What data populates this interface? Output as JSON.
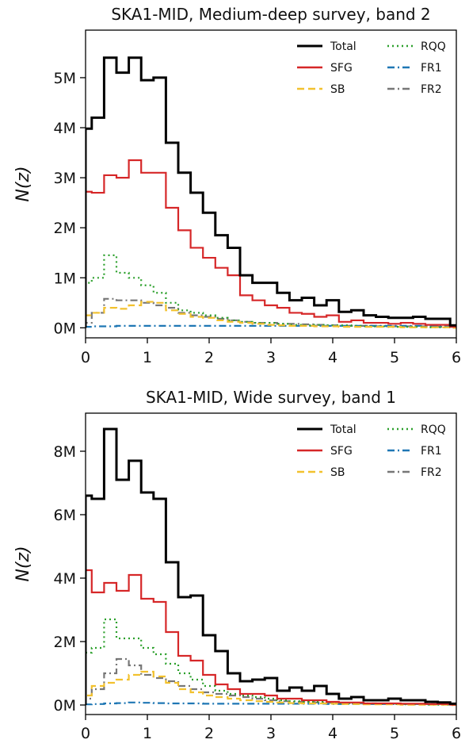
{
  "chart_data": [
    {
      "type": "step",
      "title": "SKA1-MID, Medium-deep survey, band 2",
      "ylabel": "N(z)",
      "xlabel": "",
      "xlim": [
        0,
        6
      ],
      "ylim": [
        -0.2,
        5.95
      ],
      "y_ticks": [
        0,
        1,
        2,
        3,
        4,
        5
      ],
      "y_tick_labels": [
        "0M",
        "1M",
        "2M",
        "3M",
        "4M",
        "5M"
      ],
      "x_ticks": [
        0,
        1,
        2,
        3,
        4,
        5,
        6
      ],
      "x_tick_labels": [
        "0",
        "1",
        "2",
        "3",
        "4",
        "5",
        "6"
      ],
      "y_unit": "millions",
      "bin_edges": [
        0,
        0.1,
        0.3,
        0.5,
        0.7,
        0.9,
        1.1,
        1.3,
        1.5,
        1.7,
        1.9,
        2.1,
        2.3,
        2.5,
        2.7,
        2.9,
        3.1,
        3.3,
        3.5,
        3.7,
        3.9,
        4.1,
        4.3,
        4.5,
        4.7,
        4.9,
        5.1,
        5.3,
        5.5,
        5.7,
        5.9,
        6.0
      ],
      "legend": {
        "position": "top-right",
        "columns": 2
      },
      "series": [
        {
          "name": "Total",
          "color": "#000000",
          "style": "solid",
          "values": [
            3.98,
            4.2,
            5.4,
            5.1,
            5.4,
            4.95,
            5.0,
            3.7,
            3.1,
            2.7,
            2.3,
            1.85,
            1.6,
            1.05,
            0.9,
            0.9,
            0.7,
            0.55,
            0.6,
            0.45,
            0.55,
            0.32,
            0.35,
            0.25,
            0.22,
            0.2,
            0.2,
            0.22,
            0.18,
            0.18,
            0.05
          ]
        },
        {
          "name": "SFG",
          "color": "#d62728",
          "style": "solid",
          "values": [
            2.72,
            2.7,
            3.05,
            3.0,
            3.35,
            3.1,
            3.1,
            2.4,
            1.95,
            1.6,
            1.4,
            1.2,
            1.05,
            0.65,
            0.55,
            0.45,
            0.4,
            0.3,
            0.28,
            0.22,
            0.25,
            0.12,
            0.15,
            0.1,
            0.1,
            0.08,
            0.1,
            0.08,
            0.06,
            0.06,
            0.02
          ]
        },
        {
          "name": "SB",
          "color": "#f2c12e",
          "style": "dashed",
          "values": [
            0.25,
            0.3,
            0.4,
            0.38,
            0.45,
            0.52,
            0.5,
            0.35,
            0.28,
            0.22,
            0.2,
            0.15,
            0.12,
            0.1,
            0.08,
            0.06,
            0.05,
            0.04,
            0.04,
            0.03,
            0.03,
            0.02,
            0.02,
            0.02,
            0.02,
            0.02,
            0.01,
            0.01,
            0.01,
            0.01,
            0.0
          ]
        },
        {
          "name": "RQQ",
          "color": "#2ca02c",
          "style": "dotted",
          "values": [
            0.9,
            1.0,
            1.45,
            1.1,
            1.0,
            0.85,
            0.7,
            0.5,
            0.35,
            0.3,
            0.25,
            0.2,
            0.15,
            0.12,
            0.1,
            0.1,
            0.08,
            0.06,
            0.05,
            0.06,
            0.05,
            0.05,
            0.04,
            0.03,
            0.03,
            0.02,
            0.02,
            0.02,
            0.01,
            0.01,
            0.0
          ]
        },
        {
          "name": "FR1",
          "color": "#1f77b4",
          "style": "dashdot",
          "values": [
            0.02,
            0.03,
            0.03,
            0.04,
            0.04,
            0.04,
            0.04,
            0.04,
            0.04,
            0.04,
            0.04,
            0.04,
            0.04,
            0.04,
            0.04,
            0.04,
            0.04,
            0.04,
            0.04,
            0.04,
            0.04,
            0.04,
            0.04,
            0.04,
            0.04,
            0.04,
            0.04,
            0.04,
            0.04,
            0.03,
            0.02
          ]
        },
        {
          "name": "FR2",
          "color": "#777777",
          "style": "dashdot",
          "values": [
            0.1,
            0.3,
            0.58,
            0.55,
            0.55,
            0.5,
            0.45,
            0.4,
            0.3,
            0.25,
            0.22,
            0.18,
            0.15,
            0.12,
            0.1,
            0.1,
            0.08,
            0.08,
            0.07,
            0.06,
            0.05,
            0.04,
            0.04,
            0.04,
            0.03,
            0.03,
            0.03,
            0.03,
            0.03,
            0.02,
            0.02
          ]
        }
      ]
    },
    {
      "type": "step",
      "title": "SKA1-MID, Wide survey, band 1",
      "ylabel": "N(z)",
      "xlabel": "",
      "xlim": [
        0,
        6
      ],
      "ylim": [
        -0.3,
        9.2
      ],
      "y_ticks": [
        0,
        2,
        4,
        6,
        8
      ],
      "y_tick_labels": [
        "0M",
        "2M",
        "4M",
        "6M",
        "8M"
      ],
      "x_ticks": [
        0,
        1,
        2,
        3,
        4,
        5,
        6
      ],
      "x_tick_labels": [
        "0",
        "1",
        "2",
        "3",
        "4",
        "5",
        "6"
      ],
      "y_unit": "millions",
      "bin_edges": [
        0,
        0.1,
        0.3,
        0.5,
        0.7,
        0.9,
        1.1,
        1.3,
        1.5,
        1.7,
        1.9,
        2.1,
        2.3,
        2.5,
        2.7,
        2.9,
        3.1,
        3.3,
        3.5,
        3.7,
        3.9,
        4.1,
        4.3,
        4.5,
        4.7,
        4.9,
        5.1,
        5.3,
        5.5,
        5.7,
        5.9,
        6.0
      ],
      "legend": {
        "position": "top-right",
        "columns": 2
      },
      "series": [
        {
          "name": "Total",
          "color": "#000000",
          "style": "solid",
          "values": [
            6.6,
            6.5,
            8.7,
            7.1,
            7.7,
            6.7,
            6.5,
            4.5,
            3.4,
            3.45,
            2.2,
            1.7,
            1.0,
            0.75,
            0.8,
            0.85,
            0.45,
            0.55,
            0.45,
            0.6,
            0.35,
            0.2,
            0.25,
            0.15,
            0.15,
            0.2,
            0.15,
            0.15,
            0.1,
            0.08,
            0.04
          ]
        },
        {
          "name": "SFG",
          "color": "#d62728",
          "style": "solid",
          "values": [
            4.25,
            3.55,
            3.85,
            3.6,
            4.1,
            3.35,
            3.25,
            2.3,
            1.55,
            1.4,
            0.95,
            0.65,
            0.5,
            0.35,
            0.35,
            0.3,
            0.2,
            0.2,
            0.15,
            0.15,
            0.1,
            0.08,
            0.08,
            0.05,
            0.05,
            0.05,
            0.04,
            0.04,
            0.03,
            0.03,
            0.01
          ]
        },
        {
          "name": "SB",
          "color": "#f2c12e",
          "style": "dashed",
          "values": [
            0.3,
            0.6,
            0.7,
            0.8,
            0.95,
            1.05,
            0.9,
            0.7,
            0.5,
            0.4,
            0.3,
            0.25,
            0.2,
            0.15,
            0.12,
            0.1,
            0.08,
            0.06,
            0.05,
            0.05,
            0.04,
            0.03,
            0.03,
            0.02,
            0.02,
            0.02,
            0.01,
            0.01,
            0.01,
            0.01,
            0.0
          ]
        },
        {
          "name": "RQQ",
          "color": "#2ca02c",
          "style": "dotted",
          "values": [
            1.65,
            1.8,
            2.7,
            2.1,
            2.1,
            1.8,
            1.6,
            1.3,
            1.0,
            0.8,
            0.6,
            0.45,
            0.35,
            0.3,
            0.25,
            0.2,
            0.15,
            0.12,
            0.1,
            0.1,
            0.08,
            0.06,
            0.05,
            0.04,
            0.03,
            0.03,
            0.02,
            0.02,
            0.01,
            0.01,
            0.0
          ]
        },
        {
          "name": "FR1",
          "color": "#1f77b4",
          "style": "dashdot",
          "values": [
            0.02,
            0.03,
            0.05,
            0.06,
            0.08,
            0.07,
            0.06,
            0.05,
            0.05,
            0.05,
            0.04,
            0.04,
            0.04,
            0.04,
            0.04,
            0.04,
            0.04,
            0.04,
            0.04,
            0.04,
            0.03,
            0.03,
            0.03,
            0.03,
            0.03,
            0.03,
            0.03,
            0.03,
            0.02,
            0.02,
            0.01
          ]
        },
        {
          "name": "FR2",
          "color": "#777777",
          "style": "dashdot",
          "values": [
            0.2,
            0.5,
            1.0,
            1.45,
            1.25,
            0.95,
            0.85,
            0.75,
            0.6,
            0.5,
            0.4,
            0.35,
            0.3,
            0.25,
            0.2,
            0.15,
            0.12,
            0.1,
            0.1,
            0.08,
            0.07,
            0.06,
            0.05,
            0.05,
            0.04,
            0.04,
            0.03,
            0.03,
            0.03,
            0.02,
            0.02
          ]
        }
      ]
    }
  ]
}
